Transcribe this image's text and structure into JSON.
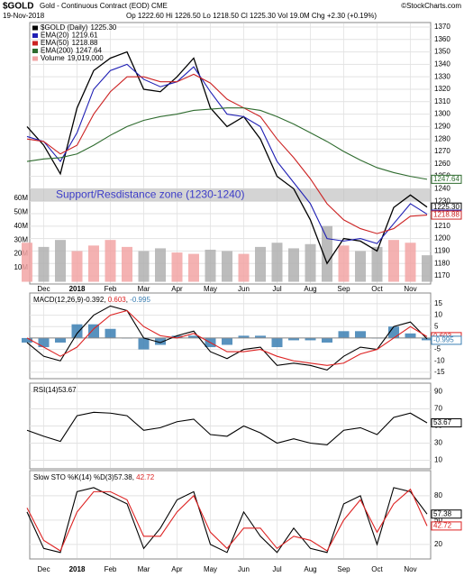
{
  "header": {
    "symbol": "$GOLD",
    "title": "Gold - Continuous Contract (EOD) CME",
    "credit": "©StockCharts.com",
    "date": "19-Nov-2018",
    "quote": "Op 1222.60  Hi 1226.50  Lo 1218.50  Cl 1225.30  Vol 19.0M  Chg +2.30 (+0.19%)"
  },
  "chart_data": [
    {
      "type": "line",
      "categories": [
        null,
        "Dec",
        null,
        "2018",
        null,
        "Feb",
        null,
        "Mar",
        null,
        "Apr",
        null,
        "May",
        null,
        "Jun",
        null,
        "Jul",
        null,
        "Aug",
        null,
        "Sep",
        null,
        "Oct",
        null,
        "Nov",
        null
      ],
      "ylim": [
        1163.5,
        1373.6
      ],
      "yticks": [
        1170,
        1180,
        1190,
        1200,
        1210,
        1220,
        1230,
        1240,
        1250,
        1260,
        1270,
        1280,
        1290,
        1300,
        1310,
        1320,
        1330,
        1340,
        1350,
        1360,
        1370
      ],
      "y2lim": [
        -1.6,
        186
      ],
      "y2ticks": [
        {
          "value": 10,
          "label": "10M"
        },
        {
          "value": 20,
          "label": "20M"
        },
        {
          "value": 30,
          "label": "30M"
        },
        {
          "value": 40,
          "label": "40M"
        },
        {
          "value": 50,
          "label": "50M"
        },
        {
          "value": 60,
          "label": "60M"
        }
      ],
      "grid": true,
      "annotation": {
        "text": "Support/Resdistance zone (1230-1240)",
        "band": [
          1230,
          1240
        ]
      },
      "series": [
        {
          "name": "$GOLD (Daily)",
          "last_label": "1225.30",
          "color": "#000000",
          "values": [
            1290,
            1275,
            1252,
            1305,
            1335,
            1345,
            1350,
            1320,
            1318,
            1330,
            1345,
            1305,
            1290,
            1298,
            1280,
            1250,
            1240,
            1215,
            1180,
            1200,
            1198,
            1190,
            1225,
            1235,
            1225.3
          ]
        },
        {
          "name": "EMA(20)",
          "last_label": "1219.61",
          "color": "#1f1fb4",
          "values": [
            1282,
            1278,
            1262,
            1285,
            1320,
            1335,
            1340,
            1328,
            1322,
            1326,
            1338,
            1318,
            1300,
            1298,
            1290,
            1262,
            1245,
            1228,
            1200,
            1198,
            1200,
            1196,
            1212,
            1228,
            1219.61
          ]
        },
        {
          "name": "EMA(50)",
          "last_label": "1218.88",
          "color": "#cc2222",
          "values": [
            1280,
            1278,
            1268,
            1275,
            1300,
            1318,
            1330,
            1330,
            1326,
            1326,
            1332,
            1325,
            1312,
            1305,
            1298,
            1280,
            1265,
            1248,
            1228,
            1215,
            1208,
            1204,
            1208,
            1218,
            1218.88
          ]
        },
        {
          "name": "EMA(200)",
          "last_label": "1247.64",
          "color": "#2e6b2e",
          "values": [
            1262,
            1264,
            1265,
            1268,
            1275,
            1283,
            1290,
            1295,
            1298,
            1300,
            1303,
            1304,
            1305,
            1305,
            1303,
            1298,
            1292,
            1285,
            1278,
            1270,
            1263,
            1257,
            1253,
            1250,
            1247.64
          ]
        },
        {
          "name": "Volume",
          "last_label": "19,019,000",
          "type": "bar",
          "axis": "y2",
          "color": "#f2a5a5",
          "values": [
            28,
            25,
            30,
            22,
            26,
            30,
            25,
            22,
            24,
            21,
            20,
            23,
            22,
            20,
            25,
            28,
            24,
            27,
            40,
            26,
            22,
            25,
            30,
            28,
            19.019
          ]
        }
      ]
    },
    {
      "type": "macd",
      "title": "MACD(12,26,9)",
      "ylim": [
        -17.8,
        19.7
      ],
      "yticks": [
        15,
        10,
        5,
        0,
        -5,
        -10,
        -15
      ],
      "grid": true,
      "series": [
        {
          "last_label": "-0.392",
          "color": "#000000",
          "values": [
            -2,
            -8,
            -10,
            2,
            10,
            14,
            12,
            0,
            -2,
            1,
            3,
            -6,
            -9,
            -5,
            -4,
            -12,
            -11,
            -12,
            -14,
            -8,
            -4,
            -5,
            5,
            7,
            -0.392
          ]
        },
        {
          "last_label": "0.603",
          "color": "#dd2222",
          "values": [
            0,
            -4,
            -8,
            -4,
            4,
            10,
            12,
            5,
            1,
            0,
            2,
            -2,
            -6,
            -6,
            -5,
            -8,
            -10,
            -11,
            -12,
            -11,
            -7,
            -5,
            0,
            5,
            0.603
          ]
        },
        {
          "last_label": "-0.995",
          "type": "bar",
          "color": "#3b7fb3",
          "values": [
            -2,
            -4,
            -2,
            6,
            6,
            4,
            0,
            -5,
            -3,
            1,
            1,
            -4,
            -3,
            1,
            1,
            -4,
            -1,
            -1,
            -2,
            3,
            3,
            0,
            5,
            2,
            -0.995
          ]
        }
      ]
    },
    {
      "type": "line",
      "title": "RSI(14)",
      "ylim": [
        0,
        100
      ],
      "yticks": [
        90,
        70,
        50,
        30,
        10
      ],
      "grid": true,
      "series": [
        {
          "last_label": "53.67",
          "color": "#000000",
          "values": [
            45,
            38,
            32,
            62,
            66,
            65,
            62,
            45,
            48,
            55,
            58,
            40,
            38,
            50,
            42,
            30,
            35,
            30,
            28,
            45,
            48,
            40,
            60,
            65,
            53.67
          ]
        }
      ]
    },
    {
      "type": "line",
      "title": "Slow STO %K(14) %D(3)",
      "ylim": [
        2,
        111
      ],
      "yticks": [
        80,
        50,
        20
      ],
      "grid": true,
      "series": [
        {
          "last_label": "57.38",
          "color": "#000000",
          "values": [
            60,
            15,
            10,
            85,
            90,
            80,
            70,
            15,
            40,
            75,
            85,
            20,
            10,
            60,
            30,
            10,
            40,
            15,
            10,
            70,
            80,
            20,
            90,
            85,
            57.38
          ]
        },
        {
          "last_label": "42.72",
          "color": "#dd2222",
          "values": [
            65,
            25,
            12,
            60,
            85,
            85,
            75,
            30,
            30,
            60,
            80,
            35,
            15,
            40,
            40,
            15,
            30,
            25,
            12,
            50,
            75,
            35,
            70,
            88,
            42.72
          ]
        }
      ]
    }
  ]
}
